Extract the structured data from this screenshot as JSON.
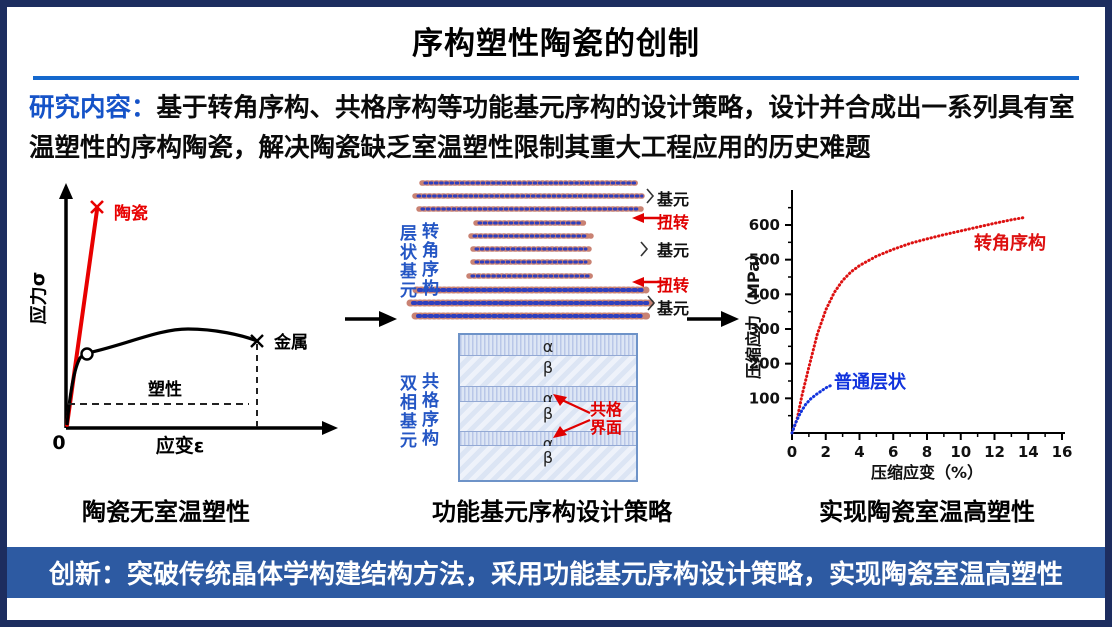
{
  "slide": {
    "title": "序构塑性陶瓷的创制",
    "research": {
      "label": "研究内容：",
      "body": "基于转角序构、共格序构等功能基元序构的设计策略，设计并合成出一系列具有室温塑性的序构陶瓷，解决陶瓷缺乏室温塑性限制其重大工程应用的历史难题"
    },
    "captions": {
      "left": "陶瓷无室温塑性",
      "middle": "功能基元序构设计策略",
      "right": "实现陶瓷室温高塑性"
    },
    "banner": "创新：突破传统晶体学构建结构方法，采用功能基元序构设计策略，实现陶瓷室温高塑性"
  },
  "middle_top": {
    "side_label_outer": "层状基元",
    "side_label_inner": "转角序构",
    "unit_label_1": "基元",
    "twist_label_1": "扭转",
    "unit_label_2": "基元",
    "twist_label_2": "扭转",
    "unit_label_3": "基元"
  },
  "middle_bottom": {
    "side_label_outer": "双相基元",
    "side_label_inner": "共格序构",
    "alpha": "α",
    "beta": "β",
    "interface_label": "共格界面"
  },
  "colors": {
    "slide_border": "#1d2d5f",
    "divider_blue": "#1568cd",
    "research_label_blue": "#1553c8",
    "banner_bg": "#2d5aa2",
    "banner_text": "#ffffff",
    "schematic_red": "#e80000",
    "side_label_blue": "#2456c4",
    "curve_red": "#dd1111",
    "curve_blue": "#1133dd"
  },
  "chart_data": [
    {
      "type": "line",
      "panel": "left-schematic-stress-strain",
      "xlabel": "应变ε",
      "ylabel": "应力σ",
      "origin_label": "0",
      "annotation": "塑性",
      "series": [
        {
          "name": "陶瓷",
          "color": "#e80000",
          "shape": "steep elastic line ending in fracture × at low strain"
        },
        {
          "name": "金属",
          "color": "#000000",
          "shape": "elastic rise, yield circle, long plastic plateau to fracture ×"
        }
      ]
    },
    {
      "type": "scatter",
      "panel": "right-compression-curves",
      "xlabel": "压缩应变（%）",
      "ylabel": "压缩应力（MPa）",
      "xlim": [
        0,
        16
      ],
      "ylim": [
        0,
        660
      ],
      "xticks": [
        0,
        2,
        4,
        6,
        8,
        10,
        12,
        14,
        16
      ],
      "yticks": [
        100,
        200,
        300,
        400,
        500,
        600
      ],
      "grid": false,
      "series": [
        {
          "name": "转角序构",
          "color": "#dd1111",
          "points": [
            [
              0,
              0
            ],
            [
              0.3,
              40
            ],
            [
              0.6,
              110
            ],
            [
              1,
              190
            ],
            [
              1.5,
              285
            ],
            [
              2,
              355
            ],
            [
              2.5,
              405
            ],
            [
              3,
              440
            ],
            [
              3.5,
              465
            ],
            [
              4,
              483
            ],
            [
              5,
              510
            ],
            [
              6,
              530
            ],
            [
              7,
              547
            ],
            [
              8,
              560
            ],
            [
              9,
              572
            ],
            [
              10,
              583
            ],
            [
              11,
              594
            ],
            [
              12,
              605
            ],
            [
              13,
              615
            ],
            [
              13.8,
              622
            ]
          ]
        },
        {
          "name": "普通层状",
          "color": "#1133dd",
          "points": [
            [
              0,
              0
            ],
            [
              0.2,
              28
            ],
            [
              0.5,
              58
            ],
            [
              0.8,
              82
            ],
            [
              1.1,
              98
            ],
            [
              1.4,
              110
            ],
            [
              1.7,
              120
            ],
            [
              2.0,
              130
            ],
            [
              2.3,
              137
            ]
          ]
        }
      ]
    }
  ]
}
